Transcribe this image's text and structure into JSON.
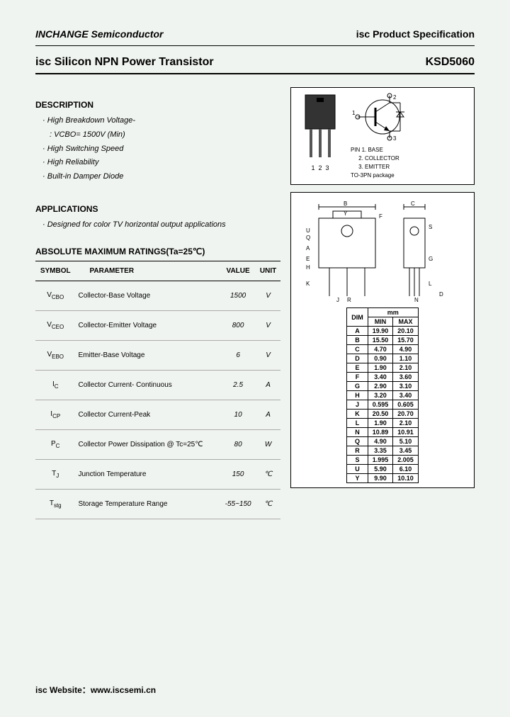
{
  "header": {
    "company": "INCHANGE Semiconductor",
    "spec": "isc Product Specification"
  },
  "title": {
    "product": "isc Silicon NPN Power Transistor",
    "part": "KSD5060"
  },
  "description": {
    "heading": "DESCRIPTION",
    "items": [
      "High Breakdown Voltage-",
      ": VCBO= 1500V (Min)",
      "High Switching Speed",
      "High Reliability",
      "Built-in Damper Diode"
    ]
  },
  "applications": {
    "heading": "APPLICATIONS",
    "text": "Designed for color TV horizontal output applications"
  },
  "package_fig": {
    "pin_heading": "PIN",
    "pin1": "1. BASE",
    "pin2": "2. COLLECTOR",
    "pin3": "3. EMITTER",
    "pkg": "TO-3PN package",
    "num1": "1",
    "num2": "2",
    "num3": "3",
    "term1": "1",
    "term2": "2",
    "term3": "3"
  },
  "ratings": {
    "heading": "ABSOLUTE MAXIMUM RATINGS(Ta=25℃)",
    "columns": [
      "SYMBOL",
      "PARAMETER",
      "VALUE",
      "UNIT"
    ],
    "rows": [
      {
        "sym": "V<sub>CBO</sub>",
        "param": "Collector-Base Voltage",
        "val": "1500",
        "unit": "V"
      },
      {
        "sym": "V<sub>CEO</sub>",
        "param": "Collector-Emitter Voltage",
        "val": "800",
        "unit": "V"
      },
      {
        "sym": "V<sub>EBO</sub>",
        "param": "Emitter-Base Voltage",
        "val": "6",
        "unit": "V"
      },
      {
        "sym": "I<sub>C</sub>",
        "param": "Collector Current- Continuous",
        "val": "2.5",
        "unit": "A"
      },
      {
        "sym": "I<sub>CP</sub>",
        "param": "Collector Current-Peak",
        "val": "10",
        "unit": "A"
      },
      {
        "sym": "P<sub>C</sub>",
        "param": "Collector Power Dissipation @ Tc=25℃",
        "val": "80",
        "unit": "W"
      },
      {
        "sym": "T<sub>J</sub>",
        "param": "Junction Temperature",
        "val": "150",
        "unit": "℃"
      },
      {
        "sym": "T<sub>stg</sub>",
        "param": "Storage Temperature Range",
        "val": "-55~150",
        "unit": "℃"
      }
    ]
  },
  "dims": {
    "head_mm": "mm",
    "head_dim": "DIM",
    "head_min": "MIN",
    "head_max": "MAX",
    "rows": [
      [
        "A",
        "19.90",
        "20.10"
      ],
      [
        "B",
        "15.50",
        "15.70"
      ],
      [
        "C",
        "4.70",
        "4.90"
      ],
      [
        "D",
        "0.90",
        "1.10"
      ],
      [
        "E",
        "1.90",
        "2.10"
      ],
      [
        "F",
        "3.40",
        "3.60"
      ],
      [
        "G",
        "2.90",
        "3.10"
      ],
      [
        "H",
        "3.20",
        "3.40"
      ],
      [
        "J",
        "0.595",
        "0.605"
      ],
      [
        "K",
        "20.50",
        "20.70"
      ],
      [
        "L",
        "1.90",
        "2.10"
      ],
      [
        "N",
        "10.89",
        "10.91"
      ],
      [
        "Q",
        "4.90",
        "5.10"
      ],
      [
        "R",
        "3.35",
        "3.45"
      ],
      [
        "S",
        "1.995",
        "2.005"
      ],
      [
        "U",
        "5.90",
        "6.10"
      ],
      [
        "Y",
        "9.90",
        "10.10"
      ]
    ]
  },
  "footer": {
    "label": "isc Website：",
    "url": "www.iscsemi.cn"
  },
  "style": {
    "page_bg": "#f0f4f0",
    "border_color": "#000000",
    "text_color": "#000000",
    "row_border": "#aaaaaa"
  }
}
